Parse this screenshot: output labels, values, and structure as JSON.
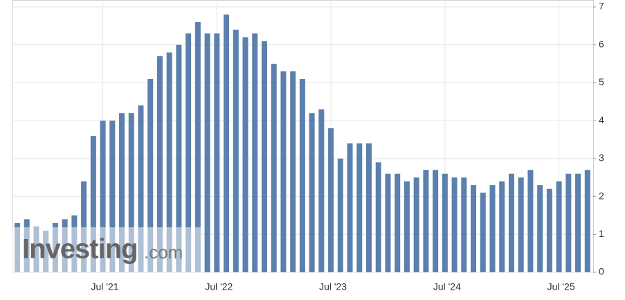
{
  "chart_data": {
    "type": "bar",
    "categories": [
      null,
      null,
      null,
      null,
      null,
      null,
      null,
      null,
      null,
      "Jul '21",
      null,
      null,
      null,
      null,
      null,
      null,
      null,
      null,
      null,
      null,
      null,
      "Jul '22",
      null,
      null,
      null,
      null,
      null,
      null,
      null,
      null,
      null,
      null,
      null,
      "Jul '23",
      null,
      null,
      null,
      null,
      null,
      null,
      null,
      null,
      null,
      null,
      null,
      "Jul '24",
      null,
      null,
      null,
      null,
      null,
      null,
      null,
      null,
      null,
      null,
      null,
      "Jul '25",
      null,
      null,
      null
    ],
    "values": [
      1.3,
      1.4,
      1.2,
      1.1,
      1.3,
      1.4,
      1.5,
      2.4,
      3.6,
      4.0,
      4.0,
      4.2,
      4.2,
      4.4,
      5.1,
      5.7,
      5.8,
      6.0,
      6.3,
      6.6,
      6.3,
      6.3,
      6.8,
      6.4,
      6.2,
      6.3,
      6.1,
      5.5,
      5.3,
      5.3,
      5.1,
      4.2,
      4.3,
      3.8,
      3.0,
      3.4,
      3.4,
      3.4,
      2.9,
      2.6,
      2.6,
      2.4,
      2.5,
      2.7,
      2.7,
      2.6,
      2.5,
      2.5,
      2.3,
      2.1,
      2.3,
      2.4,
      2.6,
      2.5,
      2.7,
      2.3,
      2.2,
      2.4,
      2.6,
      2.6,
      2.7
    ],
    "color": "#5b80ad",
    "ylim": [
      0,
      7
    ],
    "yticks": [
      0,
      1,
      2,
      3,
      4,
      5,
      6,
      7
    ],
    "grid": true,
    "watermark": {
      "brand": "Investing",
      "suffix": ".com"
    }
  }
}
